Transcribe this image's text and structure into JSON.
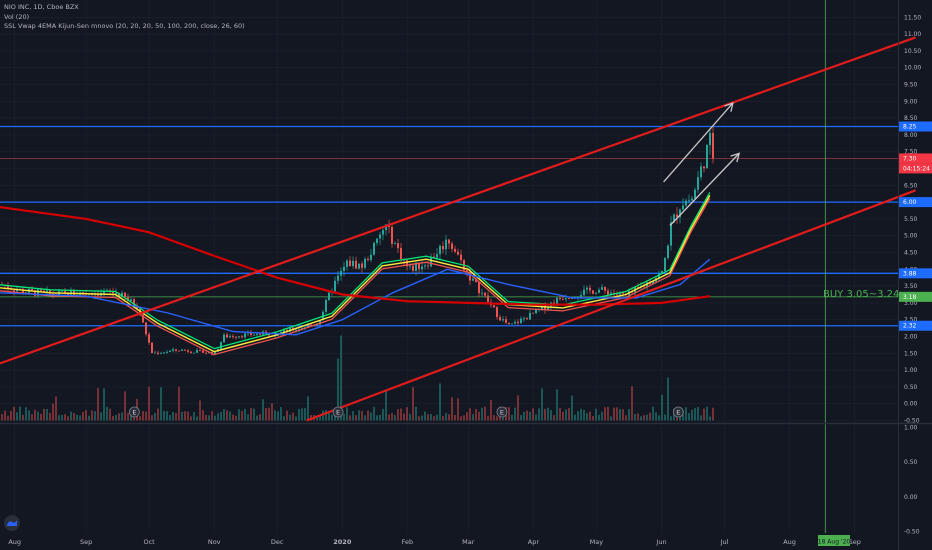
{
  "header": {
    "symbol_line": "NIO INC, 1D, Cboe BZX",
    "volume_line": "Vol (20)",
    "indicator_line": "SSL Vwap 4EMA Kijun-Sen mnovo (20, 20, 20, 50, 100, 200, close, 26, 60)"
  },
  "colors": {
    "background": "#131722",
    "grid": "#1e222d",
    "up": "#26a69a",
    "down": "#ef5350",
    "trendline": "#e31b1b",
    "horizontal_level": "#1e6bff",
    "buy_level": "#4caf50",
    "ema_yellow": "#ffeb3b",
    "ema_green": "#00e676",
    "ema_blue": "#2962ff",
    "ema_red": "#d50000",
    "last_price_badge": "#f23645",
    "axis_text": "#b2b5be",
    "arrow": "#c8c8c8"
  },
  "annotations": {
    "buy_text": "BUY 3.05~3.24",
    "date_badge": "18 Aug '20"
  },
  "chart_data": [
    {
      "type": "candlestick",
      "title": "NIO INC, 1D, Cboe BZX",
      "x_ticks": [
        "Aug",
        "Sep",
        "Oct",
        "Nov",
        "Dec",
        "2020",
        "Feb",
        "Mar",
        "Apr",
        "May",
        "Jun",
        "Jul",
        "Aug",
        "Sep"
      ],
      "y_ticks": [
        "11.50",
        "11.00",
        "10.50",
        "10.00",
        "9.50",
        "9.00",
        "8.50",
        "8.00",
        "7.50",
        "7.00",
        "6.50",
        "6.00",
        "5.50",
        "5.00",
        "4.50",
        "4.00",
        "3.50",
        "3.00",
        "2.50",
        "2.00",
        "1.50",
        "1.00",
        "0.50",
        "0.00",
        "-0.50"
      ],
      "ylim": [
        -0.5,
        11.5
      ],
      "price_labels": [
        {
          "label": "8.25",
          "value": 8.25,
          "color": "#1e6bff"
        },
        {
          "label": "6.00",
          "value": 6.0,
          "color": "#1e6bff"
        },
        {
          "label": "3.88",
          "value": 3.88,
          "color": "#1e6bff"
        },
        {
          "label": "3.18",
          "value": 3.18,
          "color": "#4caf50"
        },
        {
          "label": "2.32",
          "value": 2.32,
          "color": "#1e6bff"
        },
        {
          "label": "7.30",
          "value": 7.3,
          "color": "#f23645"
        },
        {
          "label": "04:15:24",
          "value": 7.02,
          "color": "#f23645"
        }
      ],
      "horizontal_levels": [
        8.25,
        6.0,
        3.88,
        2.32
      ],
      "buy_level": 3.18,
      "last_price": 7.3,
      "countdown": "04:15:24",
      "price_path": [
        [
          "2019-07-22",
          3.55
        ],
        [
          "2019-08-01",
          3.35
        ],
        [
          "2019-08-15",
          3.25
        ],
        [
          "2019-09-01",
          3.3
        ],
        [
          "2019-09-15",
          3.3
        ],
        [
          "2019-09-25",
          2.9
        ],
        [
          "2019-10-02",
          1.5
        ],
        [
          "2019-10-15",
          1.6
        ],
        [
          "2019-11-01",
          1.5
        ],
        [
          "2019-11-05",
          2.0
        ],
        [
          "2019-11-15",
          2.05
        ],
        [
          "2019-12-01",
          2.1
        ],
        [
          "2019-12-20",
          2.4
        ],
        [
          "2019-12-27",
          3.5
        ],
        [
          "2020-01-03",
          4.2
        ],
        [
          "2020-01-10",
          4.1
        ],
        [
          "2020-01-17",
          4.8
        ],
        [
          "2020-01-21",
          5.3
        ],
        [
          "2020-02-01",
          4.0
        ],
        [
          "2020-02-10",
          4.2
        ],
        [
          "2020-02-20",
          4.9
        ],
        [
          "2020-03-01",
          3.8
        ],
        [
          "2020-03-15",
          2.6
        ],
        [
          "2020-03-20",
          2.3
        ],
        [
          "2020-04-01",
          2.7
        ],
        [
          "2020-04-15",
          3.2
        ],
        [
          "2020-05-01",
          3.4
        ],
        [
          "2020-05-15",
          3.2
        ],
        [
          "2020-06-01",
          3.9
        ],
        [
          "2020-06-05",
          5.3
        ],
        [
          "2020-06-10",
          6.0
        ],
        [
          "2020-06-15",
          6.1
        ],
        [
          "2020-06-20",
          7.1
        ],
        [
          "2020-06-24",
          7.9
        ],
        [
          "2020-06-26",
          7.3
        ]
      ],
      "series": [
        {
          "name": "EMA 20",
          "color": "#ffeb3b",
          "points": [
            [
              "2019-07-22",
              3.45
            ],
            [
              "2019-08-15",
              3.3
            ],
            [
              "2019-09-15",
              3.25
            ],
            [
              "2019-10-05",
              2.4
            ],
            [
              "2019-11-01",
              1.55
            ],
            [
              "2019-12-01",
              2.05
            ],
            [
              "2019-12-27",
              2.6
            ],
            [
              "2020-01-20",
              4.1
            ],
            [
              "2020-02-10",
              4.3
            ],
            [
              "2020-03-01",
              4.0
            ],
            [
              "2020-03-20",
              2.95
            ],
            [
              "2020-04-15",
              2.85
            ],
            [
              "2020-05-15",
              3.25
            ],
            [
              "2020-06-05",
              3.9
            ],
            [
              "2020-06-15",
              5.2
            ],
            [
              "2020-06-24",
              6.2
            ]
          ]
        },
        {
          "name": "EMA 50",
          "color": "#2962ff",
          "points": [
            [
              "2019-07-22",
              3.3
            ],
            [
              "2019-09-01",
              3.2
            ],
            [
              "2019-10-10",
              2.7
            ],
            [
              "2019-11-10",
              2.15
            ],
            [
              "2019-12-10",
              2.05
            ],
            [
              "2020-01-01",
              2.5
            ],
            [
              "2020-01-25",
              3.3
            ],
            [
              "2020-02-20",
              4.0
            ],
            [
              "2020-03-20",
              3.55
            ],
            [
              "2020-04-20",
              3.15
            ],
            [
              "2020-05-20",
              3.15
            ],
            [
              "2020-06-10",
              3.55
            ],
            [
              "2020-06-24",
              4.3
            ]
          ]
        },
        {
          "name": "EMA 200",
          "color": "#d50000",
          "points": [
            [
              "2019-07-22",
              5.85
            ],
            [
              "2019-09-01",
              5.5
            ],
            [
              "2019-10-01",
              5.1
            ],
            [
              "2019-11-01",
              4.4
            ],
            [
              "2019-12-01",
              3.75
            ],
            [
              "2020-01-01",
              3.25
            ],
            [
              "2020-02-01",
              3.05
            ],
            [
              "2020-03-01",
              3.0
            ],
            [
              "2020-04-01",
              2.95
            ],
            [
              "2020-05-01",
              2.95
            ],
            [
              "2020-06-01",
              3.0
            ],
            [
              "2020-06-24",
              3.2
            ]
          ]
        }
      ],
      "trendlines": [
        {
          "name": "upper channel",
          "from": [
            "2019-07-22",
            1.2
          ],
          "to": [
            "2020-09-30",
            10.9
          ]
        },
        {
          "name": "lower channel",
          "from": [
            "2019-12-15",
            -0.5
          ],
          "to": [
            "2020-09-30",
            6.35
          ]
        }
      ],
      "projection_arrows": [
        {
          "from": [
            "2020-06-02",
            6.6
          ],
          "to": [
            "2020-07-05",
            8.95
          ]
        },
        {
          "from": [
            "2020-06-05",
            5.3
          ],
          "to": [
            "2020-07-08",
            7.45
          ]
        }
      ],
      "earnings_markers": [
        "2019-09-24",
        "2019-12-30",
        "2020-03-17",
        "2020-06-09"
      ],
      "vertical_marker_date": "2020-08-18"
    },
    {
      "type": "bar",
      "title": "Vol (20)",
      "y_ticks": [
        "1.00",
        "0.50",
        "0.00",
        "-0.50"
      ],
      "ylim": [
        -0.5,
        1.0
      ]
    }
  ]
}
